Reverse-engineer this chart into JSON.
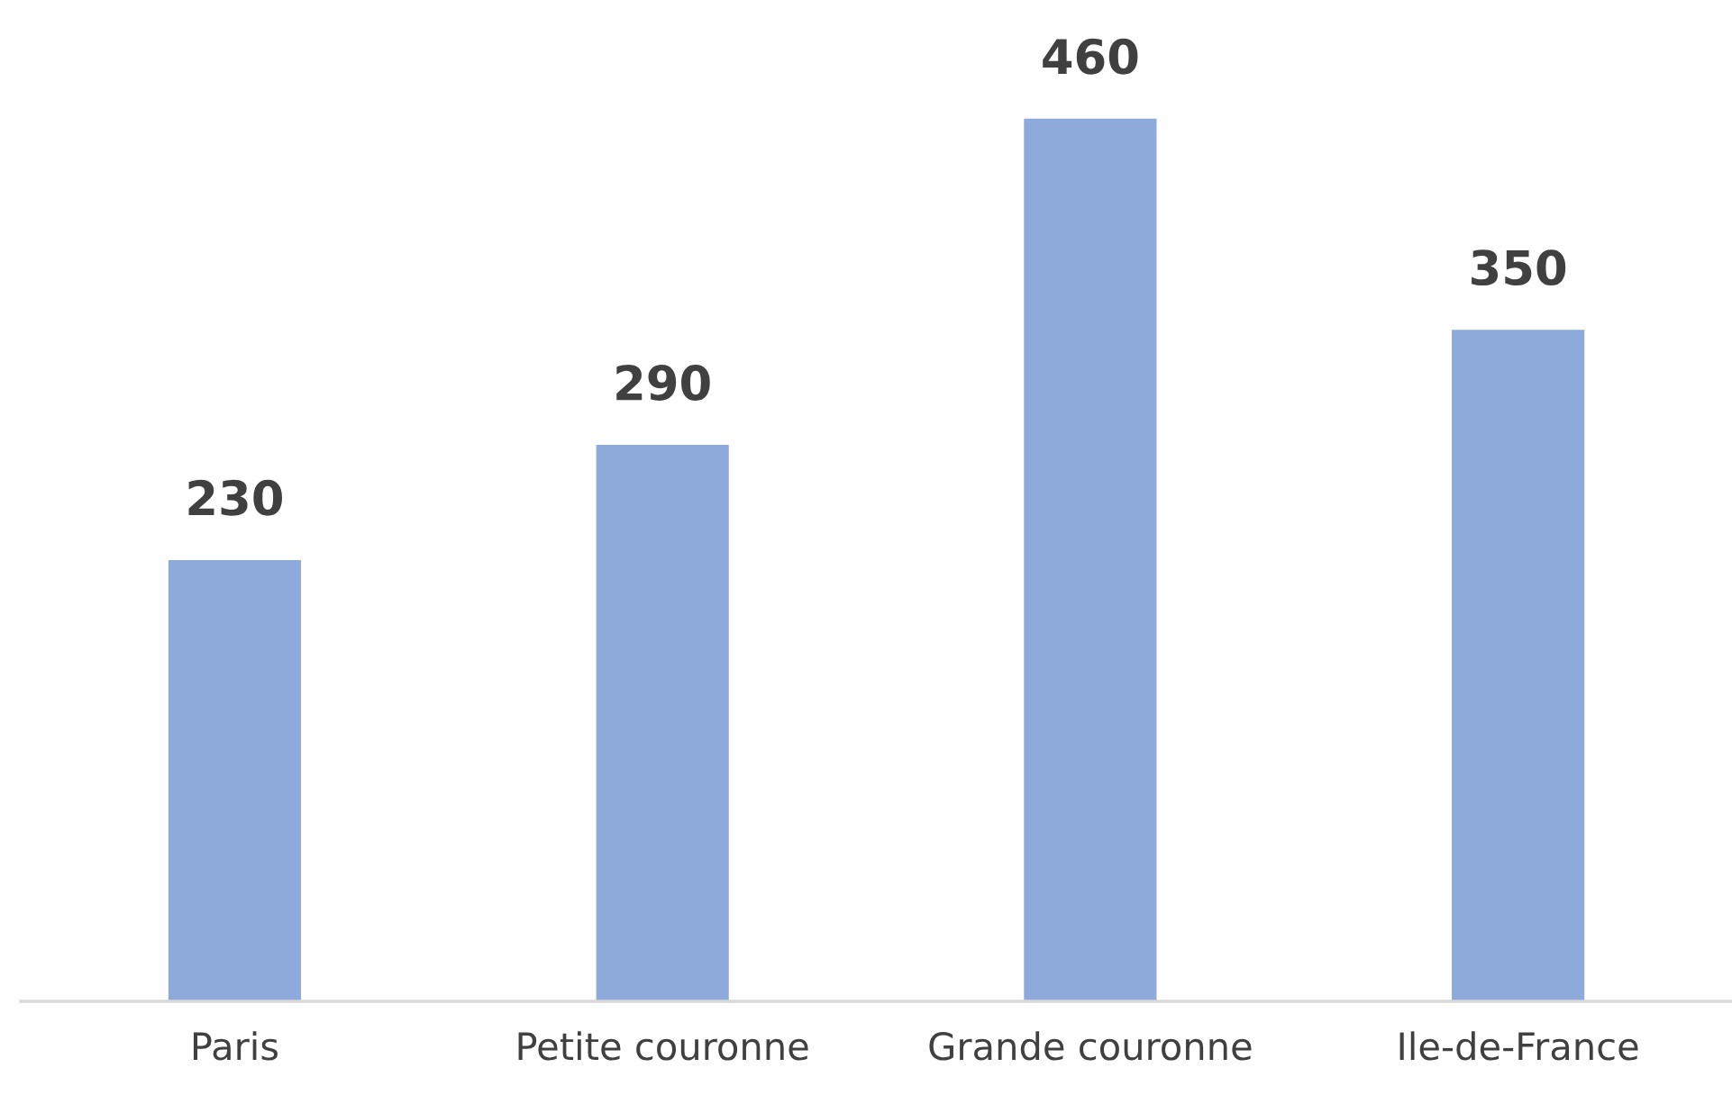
{
  "chart_data": {
    "type": "bar",
    "categories": [
      "Paris",
      "Petite couronne",
      "Grande couronne",
      "Ile-de-France"
    ],
    "values": [
      230,
      290,
      460,
      350
    ],
    "color": "#8eaadb",
    "data_labels": true,
    "tick_labels": "x",
    "grid": false,
    "legend": false
  }
}
